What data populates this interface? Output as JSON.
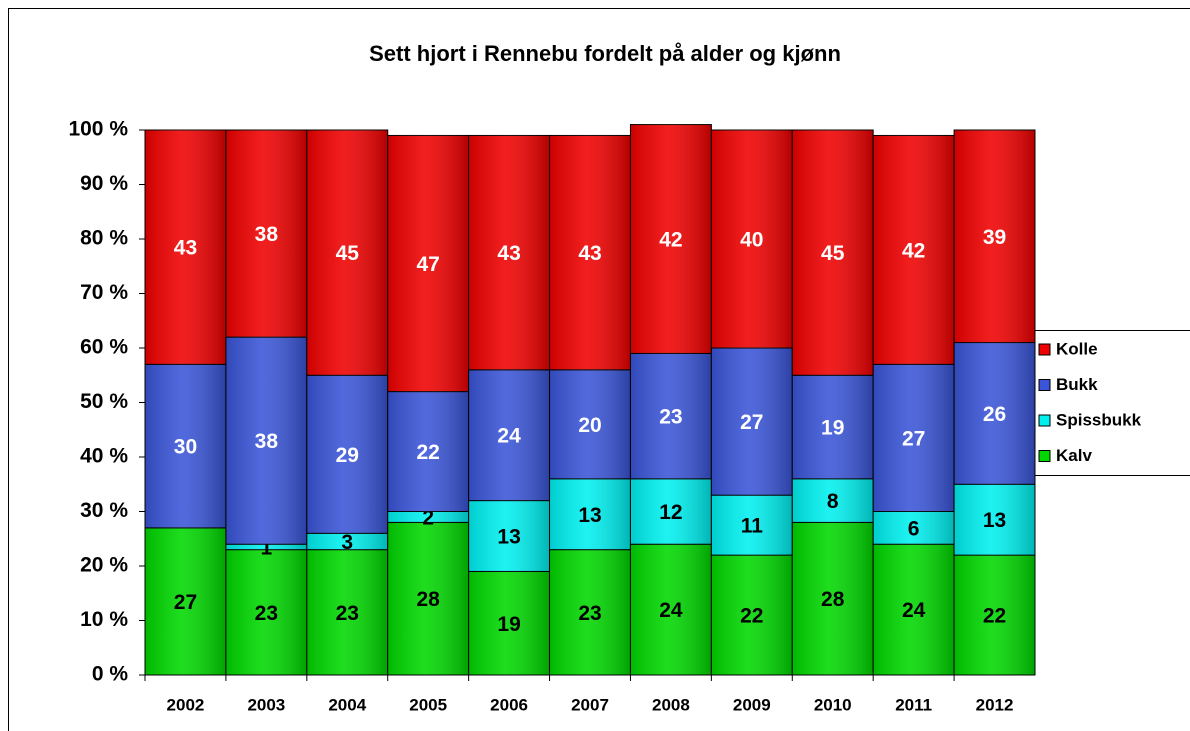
{
  "chart_data": {
    "type": "stacked_bar_100",
    "title": "Sett hjort i Rennebu fordelt på alder og kjønn",
    "categories": [
      "2002",
      "2003",
      "2004",
      "2005",
      "2006",
      "2007",
      "2008",
      "2009",
      "2010",
      "2011",
      "2012"
    ],
    "series": [
      {
        "name": "Kalv",
        "color": "#00d800",
        "label_color": "#000000",
        "values": [
          27,
          23,
          23,
          28,
          19,
          23,
          24,
          22,
          28,
          24,
          22
        ]
      },
      {
        "name": "Spissbukk",
        "color": "#00f0f0",
        "label_color": "#000000",
        "values": [
          0,
          1,
          3,
          2,
          13,
          13,
          12,
          11,
          8,
          6,
          13
        ]
      },
      {
        "name": "Bukk",
        "color": "#3a55d8",
        "label_color": "#ffffff",
        "values": [
          30,
          38,
          29,
          22,
          24,
          20,
          23,
          27,
          19,
          27,
          26
        ]
      },
      {
        "name": "Kolle",
        "color": "#f00000",
        "label_color": "#ffffff",
        "values": [
          43,
          38,
          45,
          47,
          43,
          43,
          42,
          40,
          45,
          42,
          39
        ]
      }
    ],
    "ylim": [
      0,
      100
    ],
    "yticks": [
      {
        "value": 0,
        "label": "0 %"
      },
      {
        "value": 10,
        "label": "10 %"
      },
      {
        "value": 20,
        "label": "20 %"
      },
      {
        "value": 30,
        "label": "30 %"
      },
      {
        "value": 40,
        "label": "40 %"
      },
      {
        "value": 50,
        "label": "50 %"
      },
      {
        "value": 60,
        "label": "60 %"
      },
      {
        "value": 70,
        "label": "70 %"
      },
      {
        "value": 80,
        "label": "80 %"
      },
      {
        "value": 90,
        "label": "90 %"
      },
      {
        "value": 100,
        "label": "100 %"
      }
    ],
    "grid": false,
    "legend": "right"
  }
}
